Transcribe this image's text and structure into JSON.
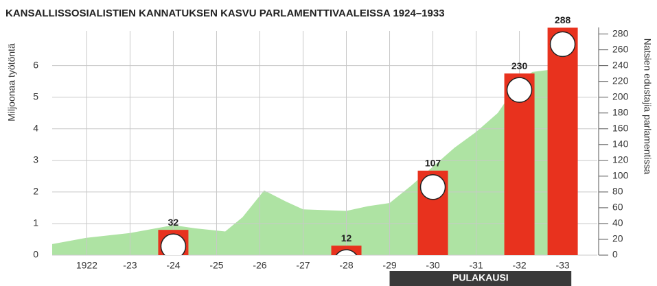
{
  "chart_data": {
    "type": "bar",
    "title": "KANSALLISSOSIALISTIEN KANNATUKSEN KASVU PARLAMENTTIVAALEISSA 1924–1933",
    "ylabel": "Miljoonaa työtöntä",
    "y2label": "Natsien edustajia parlamentissa",
    "xlim": [
      1921.2,
      1933.8
    ],
    "xticks": [
      1922,
      {
        "value": 1923,
        "label": "-23"
      },
      {
        "value": 1924,
        "label": "-24"
      },
      {
        "value": 1925,
        "label": "-25"
      },
      {
        "value": 1926,
        "label": "-26"
      },
      {
        "value": 1927,
        "label": "-27"
      },
      {
        "value": 1928,
        "label": "-28"
      },
      {
        "value": 1929,
        "label": "-29"
      },
      {
        "value": 1930,
        "label": "-30"
      },
      {
        "value": 1931,
        "label": "-31"
      },
      {
        "value": 1932,
        "label": "-32"
      },
      {
        "value": 1933,
        "label": "-33"
      }
    ],
    "ylim": [
      0,
      7.1
    ],
    "yticks": [
      0,
      1,
      2,
      3,
      4,
      5,
      6
    ],
    "y2lim": [
      0,
      284
    ],
    "y2ticks": [
      0,
      20,
      40,
      60,
      80,
      100,
      120,
      140,
      160,
      180,
      200,
      220,
      240,
      260,
      280
    ],
    "grid": true,
    "series": [
      {
        "type": "area",
        "color": "#aee3a3",
        "x": [
          1921.2,
          1922,
          1923,
          1924,
          1924.5,
          1925.2,
          1925.6,
          1926.1,
          1926.6,
          1927,
          1928,
          1928.5,
          1929,
          1929.5,
          1930,
          1930.5,
          1931,
          1931.5,
          1932,
          1932.3,
          1932.9
        ],
        "values": [
          0.35,
          0.55,
          0.7,
          0.95,
          0.85,
          0.75,
          1.2,
          2.05,
          1.7,
          1.45,
          1.4,
          1.55,
          1.65,
          2.2,
          2.8,
          3.4,
          3.9,
          4.5,
          5.5,
          5.8,
          5.9
        ]
      },
      {
        "type": "bar",
        "axis": "y2",
        "color": "#e8321e",
        "x": [
          1924,
          1928,
          1930,
          1932,
          1933
        ],
        "values": [
          32,
          12,
          107,
          230,
          288
        ]
      }
    ],
    "annotations": [
      {
        "text": "PULAKAUSI",
        "x": [
          1929,
          1933.2
        ]
      }
    ]
  }
}
